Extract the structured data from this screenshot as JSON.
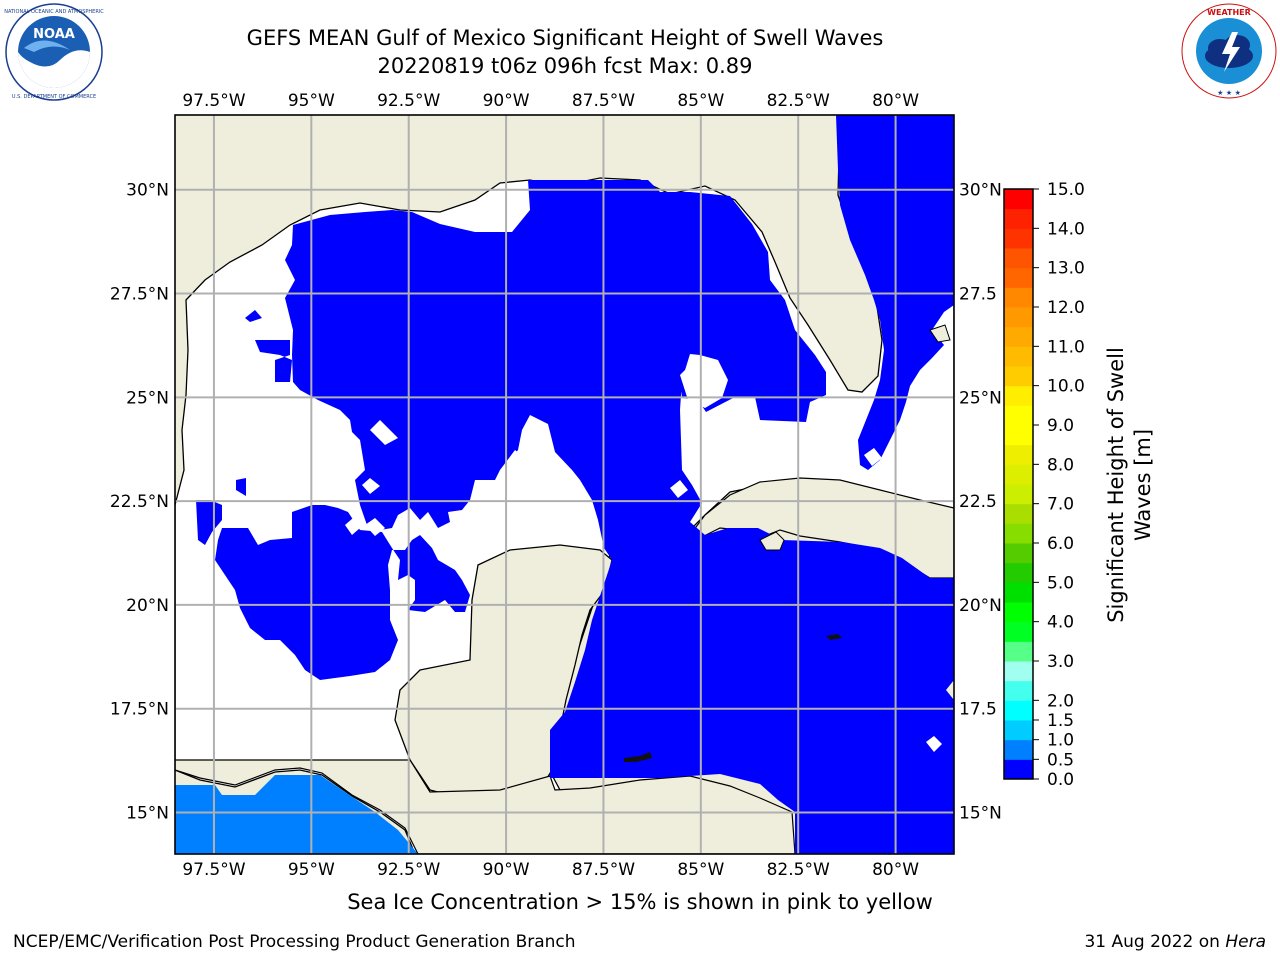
{
  "title": {
    "line1": "GEFS MEAN Gulf of Mexico Significant Height of Swell Waves",
    "line2": "20220819 t06z 096h fcst   Max: 0.89"
  },
  "logos": {
    "left": {
      "name": "NOAA",
      "ring_text": "NATIONAL OCEANIC AND ATMOSPHERIC ADMINISTRATION · U.S. DEPARTMENT OF COMMERCE"
    },
    "right": {
      "name": "NATIONAL WEATHER SERVICE"
    }
  },
  "map": {
    "lon_range": [
      -98.5,
      -78.5
    ],
    "lat_range": [
      14.0,
      31.8
    ],
    "lon_ticks": [
      {
        "value": -97.5,
        "label": "97.5°W"
      },
      {
        "value": -95.0,
        "label": "95°W"
      },
      {
        "value": -92.5,
        "label": "92.5°W"
      },
      {
        "value": -90.0,
        "label": "90°W"
      },
      {
        "value": -87.5,
        "label": "87.5°W"
      },
      {
        "value": -85.0,
        "label": "85°W"
      },
      {
        "value": -82.5,
        "label": "82.5°W"
      },
      {
        "value": -80.0,
        "label": "80°W"
      }
    ],
    "lat_ticks_left": [
      {
        "value": 30.0,
        "label": "30°N"
      },
      {
        "value": 27.5,
        "label": "27.5°N"
      },
      {
        "value": 25.0,
        "label": "25°N"
      },
      {
        "value": 22.5,
        "label": "22.5°N"
      },
      {
        "value": 20.0,
        "label": "20°N"
      },
      {
        "value": 17.5,
        "label": "17.5°N"
      },
      {
        "value": 15.0,
        "label": "15°N"
      }
    ],
    "lat_ticks_right": [
      {
        "value": 30.0,
        "label": "30°N"
      },
      {
        "value": 27.5,
        "label": "27.5"
      },
      {
        "value": 25.0,
        "label": "25°N"
      },
      {
        "value": 22.5,
        "label": "22.5"
      },
      {
        "value": 20.0,
        "label": "20°N"
      },
      {
        "value": 17.5,
        "label": "17.5"
      },
      {
        "value": 15.0,
        "label": "15°N"
      }
    ],
    "colors": {
      "land": "#efeedd",
      "swell_0_05": "#0000ff",
      "swell_05_10": "#0080ff",
      "no_data": "#ffffff",
      "grid": "#b0b0b0",
      "coast": "#000000"
    },
    "field": {
      "variable": "significant height of swell waves",
      "units": "m",
      "max": 0.89
    }
  },
  "colorbar": {
    "label": "Significant Height of Swell Waves [m]",
    "bins": [
      {
        "from": 0.0,
        "to": 0.5,
        "color": "#0000ff"
      },
      {
        "from": 0.5,
        "to": 1.0,
        "color": "#0080ff"
      },
      {
        "from": 1.0,
        "to": 1.5,
        "color": "#00ccff"
      },
      {
        "from": 1.5,
        "to": 2.0,
        "color": "#00ffff"
      },
      {
        "from": 2.0,
        "to": 2.5,
        "color": "#44ffee"
      },
      {
        "from": 2.5,
        "to": 3.0,
        "color": "#a0ffee"
      },
      {
        "from": 3.0,
        "to": 3.5,
        "color": "#55ff88"
      },
      {
        "from": 3.5,
        "to": 4.0,
        "color": "#00ff22"
      },
      {
        "from": 4.0,
        "to": 4.5,
        "color": "#00ff00"
      },
      {
        "from": 4.5,
        "to": 5.0,
        "color": "#00e000"
      },
      {
        "from": 5.0,
        "to": 5.5,
        "color": "#22cc00"
      },
      {
        "from": 5.5,
        "to": 6.0,
        "color": "#55cc00"
      },
      {
        "from": 6.0,
        "to": 6.5,
        "color": "#88dd00"
      },
      {
        "from": 6.5,
        "to": 7.0,
        "color": "#aadd00"
      },
      {
        "from": 7.0,
        "to": 7.5,
        "color": "#ccee00"
      },
      {
        "from": 7.5,
        "to": 8.0,
        "color": "#ddee00"
      },
      {
        "from": 8.0,
        "to": 8.5,
        "color": "#eeee00"
      },
      {
        "from": 8.5,
        "to": 9.0,
        "color": "#ffff00"
      },
      {
        "from": 9.0,
        "to": 9.5,
        "color": "#ffff00"
      },
      {
        "from": 9.5,
        "to": 10.0,
        "color": "#ffee00"
      },
      {
        "from": 10.0,
        "to": 10.5,
        "color": "#ffcc00"
      },
      {
        "from": 10.5,
        "to": 11.0,
        "color": "#ffbb00"
      },
      {
        "from": 11.0,
        "to": 11.5,
        "color": "#ffaa00"
      },
      {
        "from": 11.5,
        "to": 12.0,
        "color": "#ff9900"
      },
      {
        "from": 12.0,
        "to": 12.5,
        "color": "#ff8800"
      },
      {
        "from": 12.5,
        "to": 13.0,
        "color": "#ff6600"
      },
      {
        "from": 13.0,
        "to": 13.5,
        "color": "#ff5500"
      },
      {
        "from": 13.5,
        "to": 14.0,
        "color": "#ff3300"
      },
      {
        "from": 14.0,
        "to": 14.5,
        "color": "#ff2200"
      },
      {
        "from": 14.5,
        "to": 15.0,
        "color": "#ff0000"
      }
    ],
    "tick_labels": [
      "0.0",
      "0.5",
      "1.0",
      "1.5",
      "2.0",
      "3.0",
      "4.0",
      "5.0",
      "6.0",
      "7.0",
      "8.0",
      "9.0",
      "10.0",
      "11.0",
      "12.0",
      "13.0",
      "14.0",
      "15.0"
    ],
    "tick_values": [
      0.0,
      0.5,
      1.0,
      1.5,
      2.0,
      3.0,
      4.0,
      5.0,
      6.0,
      7.0,
      8.0,
      9.0,
      10.0,
      11.0,
      12.0,
      13.0,
      14.0,
      15.0
    ]
  },
  "sea_ice_note": "Sea Ice Concentration > 15% is shown in pink to yellow",
  "footer": {
    "left": "NCEP/EMC/Verification Post Processing Product Generation Branch",
    "right_date": "31 Aug 2022 on ",
    "right_host": "Hera"
  }
}
